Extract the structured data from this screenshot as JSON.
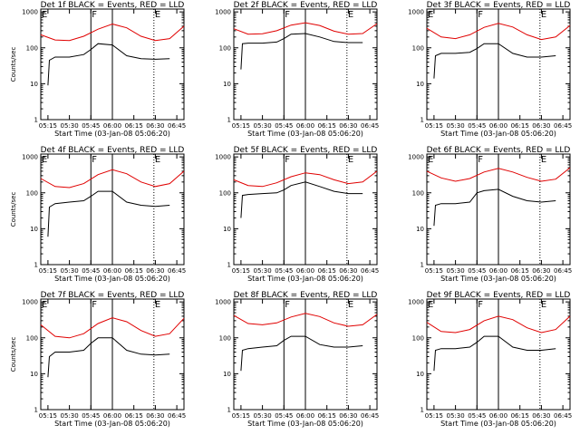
{
  "chart_data": [
    {
      "type": "line",
      "title": "Det 1f BLACK = Events, RED = LLD",
      "xlabel": "Start Time (03-Jan-08 05:06:20)",
      "ylabel": "Counts/sec",
      "x_ticks": [
        "05:15",
        "05:30",
        "05:45",
        "06:00",
        "06:15",
        "06:30",
        "06:45"
      ],
      "y_ticks": [
        "1",
        "10",
        "100",
        "1000"
      ],
      "yscale": "log",
      "ylim": [
        1,
        1200
      ],
      "xlim_minutes_after_0500": [
        10,
        110
      ],
      "markers": [
        {
          "label": "E",
          "x": "05:10",
          "style": "dotted"
        },
        {
          "label": "F",
          "x": "05:45",
          "style": "solid"
        },
        {
          "label": "",
          "x": "06:00",
          "style": "solid"
        },
        {
          "label": "E",
          "x": "06:29",
          "style": "dotted"
        }
      ],
      "series": [
        {
          "name": "RED = LLD",
          "color": "#e00000",
          "x": [
            10,
            20,
            30,
            40,
            50,
            60,
            70,
            80,
            90,
            100,
            110
          ],
          "y": [
            230,
            165,
            160,
            210,
            330,
            460,
            360,
            210,
            160,
            180,
            400
          ]
        },
        {
          "name": "BLACK = Events",
          "color": "#000000",
          "x": [
            15,
            16,
            20,
            30,
            40,
            45,
            50,
            60,
            70,
            80,
            90,
            100
          ],
          "y": [
            9,
            45,
            55,
            55,
            65,
            90,
            130,
            120,
            60,
            50,
            48,
            50
          ]
        }
      ]
    },
    {
      "type": "line",
      "title": "Det 2f BLACK = Events, RED = LLD",
      "xlabel": "Start Time (03-Jan-08 05:06:20)",
      "ylabel": "",
      "x_ticks": [
        "05:15",
        "05:30",
        "05:45",
        "06:00",
        "06:15",
        "06:30",
        "06:45"
      ],
      "y_ticks": [
        "1",
        "10",
        "100",
        "1000"
      ],
      "yscale": "log",
      "ylim": [
        1,
        1200
      ],
      "xlim_minutes_after_0500": [
        10,
        110
      ],
      "markers": [
        {
          "label": "",
          "x": "05:10",
          "style": "dotted"
        },
        {
          "label": "F",
          "x": "05:45",
          "style": "solid"
        },
        {
          "label": "",
          "x": "06:00",
          "style": "solid"
        },
        {
          "label": "E",
          "x": "06:29",
          "style": "dotted"
        }
      ],
      "series": [
        {
          "name": "RED = LLD",
          "color": "#e00000",
          "x": [
            10,
            20,
            30,
            40,
            50,
            60,
            70,
            80,
            90,
            100,
            110
          ],
          "y": [
            340,
            240,
            245,
            300,
            430,
            500,
            420,
            290,
            240,
            250,
            470
          ]
        },
        {
          "name": "BLACK = Events",
          "color": "#000000",
          "x": [
            15,
            16,
            20,
            30,
            40,
            45,
            50,
            60,
            70,
            80,
            90,
            100
          ],
          "y": [
            25,
            130,
            135,
            135,
            145,
            180,
            240,
            250,
            200,
            150,
            140,
            140
          ]
        }
      ]
    },
    {
      "type": "line",
      "title": "Det 3f BLACK = Events, RED = LLD",
      "xlabel": "Start Time (03-Jan-08 05:06:20)",
      "ylabel": "",
      "x_ticks": [
        "05:15",
        "05:30",
        "05:45",
        "06:00",
        "06:15",
        "06:30",
        "06:45"
      ],
      "y_ticks": [
        "1",
        "10",
        "100",
        "1000"
      ],
      "yscale": "log",
      "ylim": [
        1,
        1200
      ],
      "xlim_minutes_after_0500": [
        10,
        110
      ],
      "markers": [
        {
          "label": "E",
          "x": "05:10",
          "style": "dotted"
        },
        {
          "label": "F",
          "x": "05:45",
          "style": "solid"
        },
        {
          "label": "",
          "x": "06:00",
          "style": "solid"
        },
        {
          "label": "E",
          "x": "06:29",
          "style": "dotted"
        }
      ],
      "series": [
        {
          "name": "RED = LLD",
          "color": "#e00000",
          "x": [
            10,
            20,
            30,
            40,
            50,
            60,
            70,
            80,
            90,
            100,
            110
          ],
          "y": [
            350,
            200,
            180,
            230,
            370,
            480,
            380,
            230,
            170,
            200,
            420
          ]
        },
        {
          "name": "BLACK = Events",
          "color": "#000000",
          "x": [
            15,
            16,
            20,
            30,
            40,
            45,
            50,
            60,
            70,
            80,
            90,
            100
          ],
          "y": [
            14,
            60,
            70,
            70,
            75,
            95,
            130,
            130,
            70,
            55,
            55,
            60
          ]
        }
      ]
    },
    {
      "type": "line",
      "title": "Det 4f BLACK = Events, RED = LLD",
      "xlabel": "Start Time (03-Jan-08 05:06:20)",
      "ylabel": "Counts/sec",
      "x_ticks": [
        "05:15",
        "05:30",
        "05:45",
        "06:00",
        "06:15",
        "06:30",
        "06:45"
      ],
      "y_ticks": [
        "1",
        "10",
        "100",
        "1000"
      ],
      "yscale": "log",
      "ylim": [
        1,
        1200
      ],
      "xlim_minutes_after_0500": [
        10,
        110
      ],
      "markers": [
        {
          "label": "E",
          "x": "05:10",
          "style": "dotted"
        },
        {
          "label": "F",
          "x": "05:45",
          "style": "solid"
        },
        {
          "label": "",
          "x": "06:00",
          "style": "solid"
        },
        {
          "label": "E",
          "x": "06:29",
          "style": "dotted"
        }
      ],
      "series": [
        {
          "name": "RED = LLD",
          "color": "#e00000",
          "x": [
            10,
            20,
            30,
            40,
            50,
            60,
            70,
            80,
            90,
            100,
            110
          ],
          "y": [
            250,
            150,
            140,
            180,
            320,
            440,
            340,
            200,
            150,
            180,
            400
          ]
        },
        {
          "name": "BLACK = Events",
          "color": "#000000",
          "x": [
            15,
            16,
            20,
            30,
            40,
            45,
            50,
            60,
            70,
            80,
            90,
            100
          ],
          "y": [
            6,
            40,
            50,
            55,
            60,
            80,
            110,
            110,
            55,
            45,
            42,
            45
          ]
        }
      ]
    },
    {
      "type": "line",
      "title": "Det 5f BLACK = Events, RED = LLD",
      "xlabel": "Start Time (03-Jan-08 05:06:20)",
      "ylabel": "",
      "x_ticks": [
        "05:15",
        "05:30",
        "05:45",
        "06:00",
        "06:15",
        "06:30",
        "06:45"
      ],
      "y_ticks": [
        "1",
        "10",
        "100",
        "1000"
      ],
      "yscale": "log",
      "ylim": [
        1,
        1200
      ],
      "xlim_minutes_after_0500": [
        10,
        110
      ],
      "markers": [
        {
          "label": "",
          "x": "05:10",
          "style": "dotted"
        },
        {
          "label": "F",
          "x": "05:45",
          "style": "solid"
        },
        {
          "label": "",
          "x": "06:00",
          "style": "solid"
        },
        {
          "label": "E",
          "x": "06:29",
          "style": "dotted"
        }
      ],
      "series": [
        {
          "name": "RED = LLD",
          "color": "#e00000",
          "x": [
            10,
            20,
            30,
            40,
            50,
            60,
            70,
            80,
            90,
            100,
            110
          ],
          "y": [
            230,
            160,
            150,
            190,
            280,
            360,
            320,
            230,
            180,
            200,
            400
          ]
        },
        {
          "name": "BLACK = Events",
          "color": "#000000",
          "x": [
            15,
            16,
            20,
            30,
            40,
            45,
            50,
            60,
            70,
            80,
            90,
            100
          ],
          "y": [
            20,
            85,
            90,
            95,
            100,
            120,
            160,
            200,
            150,
            110,
            95,
            95
          ]
        }
      ]
    },
    {
      "type": "line",
      "title": "Det 6f BLACK = Events, RED = LLD",
      "xlabel": "Start Time (03-Jan-08 05:06:20)",
      "ylabel": "",
      "x_ticks": [
        "05:15",
        "05:30",
        "05:45",
        "06:00",
        "06:15",
        "06:30",
        "06:45"
      ],
      "y_ticks": [
        "1",
        "10",
        "100",
        "1000"
      ],
      "yscale": "log",
      "ylim": [
        1,
        1200
      ],
      "xlim_minutes_after_0500": [
        10,
        110
      ],
      "markers": [
        {
          "label": "E",
          "x": "05:10",
          "style": "dotted"
        },
        {
          "label": "F",
          "x": "05:45",
          "style": "solid"
        },
        {
          "label": "",
          "x": "06:00",
          "style": "solid"
        },
        {
          "label": "E",
          "x": "06:29",
          "style": "dotted"
        }
      ],
      "series": [
        {
          "name": "RED = LLD",
          "color": "#e00000",
          "x": [
            10,
            20,
            30,
            40,
            50,
            60,
            70,
            80,
            90,
            100,
            110
          ],
          "y": [
            400,
            260,
            210,
            250,
            380,
            480,
            380,
            270,
            210,
            240,
            500
          ]
        },
        {
          "name": "BLACK = Events",
          "color": "#000000",
          "x": [
            15,
            16,
            20,
            30,
            40,
            45,
            50,
            60,
            70,
            80,
            90,
            100
          ],
          "y": [
            12,
            45,
            50,
            50,
            55,
            100,
            115,
            125,
            80,
            60,
            55,
            60
          ]
        }
      ]
    },
    {
      "type": "line",
      "title": "Det 7f BLACK = Events, RED = LLD",
      "xlabel": "Start Time (03-Jan-08 05:06:20)",
      "ylabel": "Counts/sec",
      "x_ticks": [
        "05:15",
        "05:30",
        "05:45",
        "06:00",
        "06:15",
        "06:30",
        "06:45"
      ],
      "y_ticks": [
        "1",
        "10",
        "100",
        "1000"
      ],
      "yscale": "log",
      "ylim": [
        1,
        1200
      ],
      "xlim_minutes_after_0500": [
        10,
        110
      ],
      "markers": [
        {
          "label": "E",
          "x": "05:10",
          "style": "dotted"
        },
        {
          "label": "F",
          "x": "05:45",
          "style": "solid"
        },
        {
          "label": "",
          "x": "06:00",
          "style": "solid"
        },
        {
          "label": "E",
          "x": "06:29",
          "style": "dotted"
        }
      ],
      "series": [
        {
          "name": "RED = LLD",
          "color": "#e00000",
          "x": [
            10,
            20,
            30,
            40,
            50,
            60,
            70,
            80,
            90,
            100,
            110
          ],
          "y": [
            230,
            110,
            100,
            130,
            250,
            360,
            280,
            160,
            110,
            130,
            350
          ]
        },
        {
          "name": "BLACK = Events",
          "color": "#000000",
          "x": [
            15,
            16,
            20,
            30,
            40,
            45,
            50,
            60,
            70,
            80,
            90,
            100
          ],
          "y": [
            8,
            30,
            40,
            40,
            45,
            70,
            100,
            100,
            45,
            35,
            33,
            35
          ]
        }
      ]
    },
    {
      "type": "line",
      "title": "Det 8f BLACK = Events, RED = LLD",
      "xlabel": "Start Time (03-Jan-08 05:06:20)",
      "ylabel": "",
      "x_ticks": [
        "05:15",
        "05:30",
        "05:45",
        "06:00",
        "06:15",
        "06:30",
        "06:45"
      ],
      "y_ticks": [
        "1",
        "10",
        "100",
        "1000"
      ],
      "yscale": "log",
      "ylim": [
        1,
        1200
      ],
      "xlim_minutes_after_0500": [
        10,
        110
      ],
      "markers": [
        {
          "label": "",
          "x": "05:10",
          "style": "dotted"
        },
        {
          "label": "F",
          "x": "05:45",
          "style": "solid"
        },
        {
          "label": "",
          "x": "06:00",
          "style": "solid"
        },
        {
          "label": "E",
          "x": "06:29",
          "style": "dotted"
        }
      ],
      "series": [
        {
          "name": "RED = LLD",
          "color": "#e00000",
          "x": [
            10,
            20,
            30,
            40,
            50,
            60,
            70,
            80,
            90,
            100,
            110
          ],
          "y": [
            420,
            250,
            230,
            260,
            380,
            480,
            390,
            260,
            210,
            230,
            450
          ]
        },
        {
          "name": "BLACK = Events",
          "color": "#000000",
          "x": [
            15,
            16,
            20,
            30,
            40,
            45,
            50,
            60,
            70,
            80,
            90,
            100
          ],
          "y": [
            12,
            45,
            50,
            55,
            60,
            85,
            110,
            110,
            65,
            55,
            55,
            60
          ]
        }
      ]
    },
    {
      "type": "line",
      "title": "Det 9f BLACK = Events, RED = LLD",
      "xlabel": "Start Time (03-Jan-08 05:06:20)",
      "ylabel": "",
      "x_ticks": [
        "05:15",
        "05:30",
        "05:45",
        "06:00",
        "06:15",
        "06:30",
        "06:45"
      ],
      "y_ticks": [
        "1",
        "10",
        "100",
        "1000"
      ],
      "yscale": "log",
      "ylim": [
        1,
        1200
      ],
      "xlim_minutes_after_0500": [
        10,
        110
      ],
      "markers": [
        {
          "label": "E",
          "x": "05:10",
          "style": "dotted"
        },
        {
          "label": "F",
          "x": "05:45",
          "style": "solid"
        },
        {
          "label": "",
          "x": "06:00",
          "style": "solid"
        },
        {
          "label": "E",
          "x": "06:29",
          "style": "dotted"
        }
      ],
      "series": [
        {
          "name": "RED = LLD",
          "color": "#e00000",
          "x": [
            10,
            20,
            30,
            40,
            50,
            60,
            70,
            80,
            90,
            100,
            110
          ],
          "y": [
            270,
            150,
            140,
            170,
            300,
            400,
            320,
            190,
            140,
            170,
            400
          ]
        },
        {
          "name": "BLACK = Events",
          "color": "#000000",
          "x": [
            15,
            16,
            20,
            30,
            40,
            45,
            50,
            60,
            70,
            80,
            90,
            100
          ],
          "y": [
            12,
            45,
            50,
            50,
            55,
            75,
            110,
            110,
            55,
            45,
            45,
            50
          ]
        }
      ]
    }
  ]
}
